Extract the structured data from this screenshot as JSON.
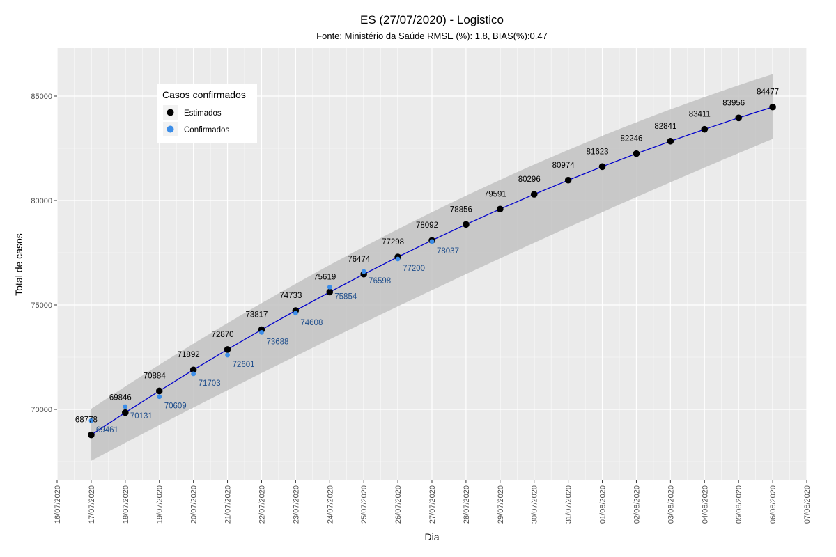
{
  "chart_data": {
    "type": "line",
    "title": "ES (27/07/2020) - Logistico",
    "subtitle": "Fonte: Ministério da Saúde RMSE (%): 1.8, BIAS(%):0.47",
    "xlabel": "Dia",
    "ylabel": "Total de casos",
    "x_ticks": [
      "16/07/2020",
      "17/07/2020",
      "18/07/2020",
      "19/07/2020",
      "20/07/2020",
      "21/07/2020",
      "22/07/2020",
      "23/07/2020",
      "24/07/2020",
      "25/07/2020",
      "26/07/2020",
      "27/07/2020",
      "28/07/2020",
      "29/07/2020",
      "30/07/2020",
      "31/07/2020",
      "01/08/2020",
      "02/08/2020",
      "03/08/2020",
      "04/08/2020",
      "05/08/2020",
      "06/08/2020",
      "07/08/2020"
    ],
    "xlim": [
      "16/07/2020",
      "07/08/2020"
    ],
    "ylim": [
      66600,
      87300
    ],
    "y_ticks": [
      70000,
      75000,
      80000,
      85000
    ],
    "grid": true,
    "legend": {
      "title": "Casos confirmados",
      "position": "top-left",
      "entries": [
        {
          "label": "Estimados",
          "color": "#000000"
        },
        {
          "label": "Confirmados",
          "color": "#3d8ee8"
        }
      ]
    },
    "colors": {
      "panel": "#ebebeb",
      "grid": "#ffffff",
      "band": "#c2c2c2",
      "line": "#0000cc",
      "estimados": "#000000",
      "confirmados": "#3d8ee8",
      "confirmados_label": "#1f4e8c"
    },
    "series": [
      {
        "name": "Estimados",
        "x": [
          "17/07/2020",
          "18/07/2020",
          "19/07/2020",
          "20/07/2020",
          "21/07/2020",
          "22/07/2020",
          "23/07/2020",
          "24/07/2020",
          "25/07/2020",
          "26/07/2020",
          "27/07/2020",
          "28/07/2020",
          "29/07/2020",
          "30/07/2020",
          "31/07/2020",
          "01/08/2020",
          "02/08/2020",
          "03/08/2020",
          "04/08/2020",
          "05/08/2020",
          "06/08/2020"
        ],
        "values": [
          68778,
          69846,
          70884,
          71892,
          72870,
          73817,
          74733,
          75619,
          76474,
          77298,
          78092,
          78856,
          79591,
          80296,
          80974,
          81623,
          82246,
          82841,
          83411,
          83956,
          84477
        ]
      },
      {
        "name": "Confirmados",
        "x": [
          "17/07/2020",
          "18/07/2020",
          "19/07/2020",
          "20/07/2020",
          "21/07/2020",
          "22/07/2020",
          "23/07/2020",
          "24/07/2020",
          "25/07/2020",
          "26/07/2020",
          "27/07/2020"
        ],
        "values": [
          69461,
          70131,
          70609,
          71703,
          72601,
          73688,
          74608,
          75854,
          76598,
          77200,
          78037
        ]
      }
    ],
    "band": {
      "x": [
        "17/07/2020",
        "06/08/2020"
      ],
      "lower": [
        67540,
        82950
      ],
      "upper": [
        70030,
        86050
      ]
    }
  }
}
